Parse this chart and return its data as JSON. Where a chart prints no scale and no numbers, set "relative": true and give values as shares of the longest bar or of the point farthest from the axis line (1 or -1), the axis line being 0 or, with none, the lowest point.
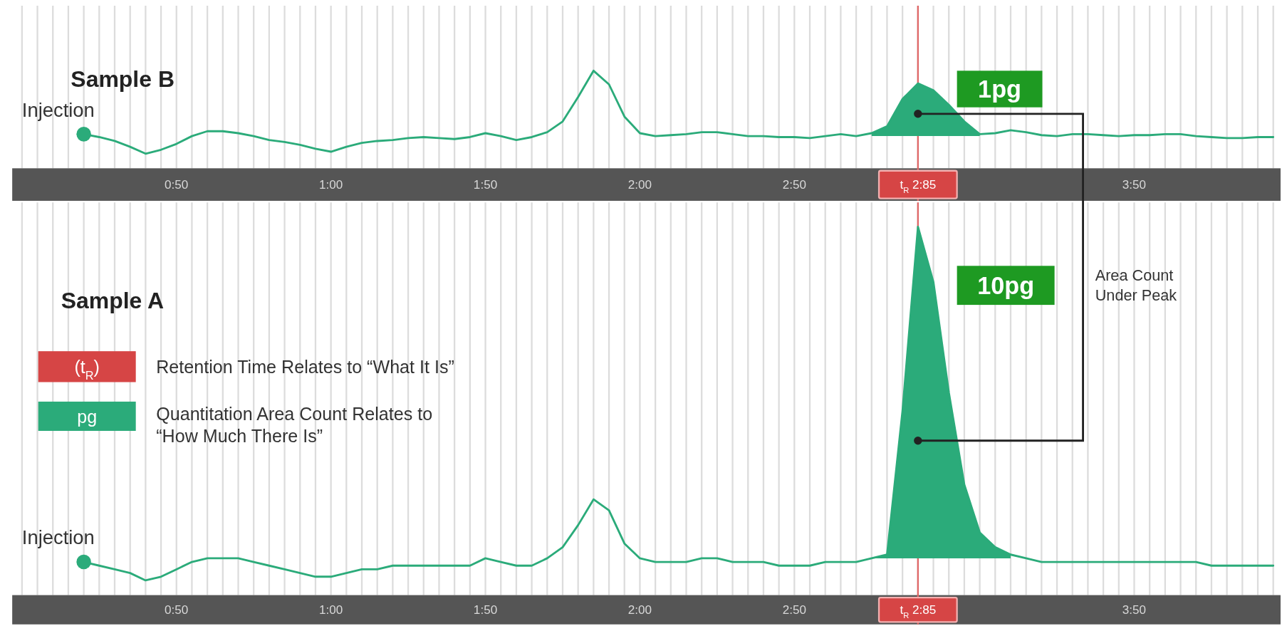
{
  "chart_data": [
    {
      "type": "line",
      "title": "Sample B",
      "relative": true,
      "grid": true,
      "categories": [
        null,
        null,
        null,
        null,
        null,
        null,
        null,
        null,
        null,
        null,
        "0:50",
        null,
        null,
        null,
        null,
        null,
        null,
        null,
        null,
        null,
        "1:00",
        null,
        null,
        null,
        null,
        null,
        null,
        null,
        null,
        null,
        "1:50",
        null,
        null,
        null,
        null,
        null,
        null,
        null,
        null,
        null,
        "2:00",
        null,
        null,
        null,
        null,
        null,
        null,
        null,
        null,
        null,
        "2:50",
        null,
        null,
        null,
        null,
        null,
        null,
        null,
        "t$_{R}$ 2:85",
        null,
        null,
        null,
        null,
        null,
        null,
        null,
        null,
        null,
        null,
        null,
        null,
        null,
        "3:50",
        null,
        null,
        null,
        null,
        null,
        null,
        null,
        null,
        null
      ],
      "series": [
        {
          "color": "#2bab7a",
          "values": [
            null,
            null,
            null,
            null,
            0.35,
            0.32,
            0.28,
            0.22,
            0.15,
            0.19,
            0.25,
            0.33,
            0.38,
            0.38,
            0.36,
            0.33,
            0.29,
            0.27,
            0.24,
            0.2,
            0.17,
            0.22,
            0.26,
            0.28,
            0.29,
            0.31,
            0.32,
            0.31,
            0.3,
            0.32,
            0.36,
            0.33,
            0.29,
            0.32,
            0.37,
            0.48,
            0.73,
            1.0,
            0.86,
            0.53,
            0.36,
            0.33,
            0.34,
            0.35,
            0.37,
            0.37,
            0.35,
            0.33,
            0.33,
            0.32,
            0.32,
            0.31,
            0.33,
            0.35,
            0.33,
            0.36,
            0.43,
            0.71,
            0.87,
            0.8,
            0.65,
            0.48,
            0.35,
            0.36,
            0.39,
            0.37,
            0.34,
            0.33,
            0.35,
            0.35,
            0.34,
            0.33,
            0.34,
            0.34,
            0.35,
            0.35,
            0.33,
            0.32,
            0.31,
            0.31,
            0.32,
            0.32
          ],
          "lower": [
            null,
            null,
            null,
            null,
            null,
            null,
            null,
            null,
            null,
            null,
            null,
            null,
            null,
            null,
            null,
            null,
            null,
            null,
            null,
            null,
            null,
            null,
            null,
            null,
            null,
            null,
            null,
            null,
            null,
            null,
            null,
            null,
            null,
            null,
            null,
            null,
            null,
            null,
            null,
            null,
            null,
            null,
            null,
            null,
            null,
            null,
            null,
            null,
            null,
            null,
            null,
            null,
            null,
            null,
            null,
            0.33,
            0.33,
            0.33,
            0.33,
            0.33,
            0.33,
            0.33,
            0.33,
            null,
            null,
            null,
            null,
            null,
            null,
            null,
            null,
            null,
            null,
            null,
            null,
            null,
            null,
            null,
            null,
            null,
            null,
            null
          ],
          "upper": [
            null,
            null,
            null,
            null,
            null,
            null,
            null,
            null,
            null,
            null,
            null,
            null,
            null,
            null,
            null,
            null,
            null,
            null,
            null,
            null,
            null,
            null,
            null,
            null,
            null,
            null,
            null,
            null,
            null,
            null,
            null,
            null,
            null,
            null,
            null,
            null,
            null,
            null,
            null,
            null,
            null,
            null,
            null,
            null,
            null,
            null,
            null,
            null,
            null,
            null,
            null,
            null,
            null,
            null,
            null,
            0.36,
            0.43,
            0.71,
            0.87,
            0.8,
            0.65,
            0.48,
            0.35,
            null,
            null,
            null,
            null,
            null,
            null,
            null,
            null,
            null,
            null,
            null,
            null,
            null,
            null,
            null,
            null,
            null,
            null,
            null
          ]
        }
      ],
      "ref_lines": [
        {
          "axis": "x",
          "value": "t$_{R}$ 2:85",
          "color": "#e06666"
        }
      ],
      "annotations": [
        "Injection",
        "1pg"
      ]
    },
    {
      "type": "line",
      "title": "Sample A",
      "relative": true,
      "grid": true,
      "categories": [
        null,
        null,
        null,
        null,
        null,
        null,
        null,
        null,
        null,
        null,
        "0:50",
        null,
        null,
        null,
        null,
        null,
        null,
        null,
        null,
        null,
        "1:00",
        null,
        null,
        null,
        null,
        null,
        null,
        null,
        null,
        null,
        "1:50",
        null,
        null,
        null,
        null,
        null,
        null,
        null,
        null,
        null,
        "2:00",
        null,
        null,
        null,
        null,
        null,
        null,
        null,
        null,
        null,
        "2:50",
        null,
        null,
        null,
        null,
        null,
        null,
        null,
        "t$_{R}$ 2:85",
        null,
        null,
        null,
        null,
        null,
        null,
        null,
        null,
        null,
        null,
        null,
        null,
        null,
        "3:50",
        null,
        null,
        null,
        null,
        null,
        null,
        null,
        null,
        null
      ],
      "series": [
        {
          "color": "#2bab7a",
          "values": [
            null,
            null,
            null,
            null,
            0.09,
            0.08,
            0.07,
            0.06,
            0.04,
            0.05,
            0.07,
            0.09,
            0.1,
            0.1,
            0.1,
            0.09,
            0.08,
            0.07,
            0.06,
            0.05,
            0.05,
            0.06,
            0.07,
            0.07,
            0.08,
            0.08,
            0.08,
            0.08,
            0.08,
            0.08,
            0.1,
            0.09,
            0.08,
            0.08,
            0.1,
            0.13,
            0.19,
            0.26,
            0.23,
            0.14,
            0.1,
            0.09,
            0.09,
            0.09,
            0.1,
            0.1,
            0.09,
            0.09,
            0.09,
            0.08,
            0.08,
            0.08,
            0.09,
            0.09,
            0.09,
            0.1,
            0.11,
            0.5,
            1.0,
            0.85,
            0.55,
            0.3,
            0.17,
            0.13,
            0.11,
            0.1,
            0.09,
            0.09,
            0.09,
            0.09,
            0.09,
            0.09,
            0.09,
            0.09,
            0.09,
            0.09,
            0.09,
            0.08,
            0.08,
            0.08,
            0.08,
            0.08
          ],
          "lower": [
            null,
            null,
            null,
            null,
            null,
            null,
            null,
            null,
            null,
            null,
            null,
            null,
            null,
            null,
            null,
            null,
            null,
            null,
            null,
            null,
            null,
            null,
            null,
            null,
            null,
            null,
            null,
            null,
            null,
            null,
            null,
            null,
            null,
            null,
            null,
            null,
            null,
            null,
            null,
            null,
            null,
            null,
            null,
            null,
            null,
            null,
            null,
            null,
            null,
            null,
            null,
            null,
            null,
            null,
            null,
            0.1,
            0.1,
            0.1,
            0.1,
            0.1,
            0.1,
            0.1,
            0.1,
            0.1,
            0.1,
            null,
            null,
            null,
            null,
            null,
            null,
            null,
            null,
            null,
            null,
            null,
            null,
            null,
            null,
            null,
            null,
            null
          ],
          "upper": [
            null,
            null,
            null,
            null,
            null,
            null,
            null,
            null,
            null,
            null,
            null,
            null,
            null,
            null,
            null,
            null,
            null,
            null,
            null,
            null,
            null,
            null,
            null,
            null,
            null,
            null,
            null,
            null,
            null,
            null,
            null,
            null,
            null,
            null,
            null,
            null,
            null,
            null,
            null,
            null,
            null,
            null,
            null,
            null,
            null,
            null,
            null,
            null,
            null,
            null,
            null,
            null,
            null,
            null,
            null,
            0.1,
            0.11,
            0.5,
            1.0,
            0.85,
            0.55,
            0.3,
            0.17,
            0.13,
            0.11,
            null,
            null,
            null,
            null,
            null,
            null,
            null,
            null,
            null,
            null,
            null,
            null,
            null,
            null,
            null,
            null,
            null
          ]
        }
      ],
      "ref_lines": [
        {
          "axis": "x",
          "value": "t$_{R}$ 2:85",
          "color": "#e06666"
        }
      ],
      "annotations": [
        "Injection",
        "10pg",
        "Area Count Under Peak",
        "(t$_{R}$)",
        "Retention Time Relates to “What It Is”",
        "pg",
        "Quantitation Area Count Relates to “How Much There Is”"
      ]
    }
  ]
}
